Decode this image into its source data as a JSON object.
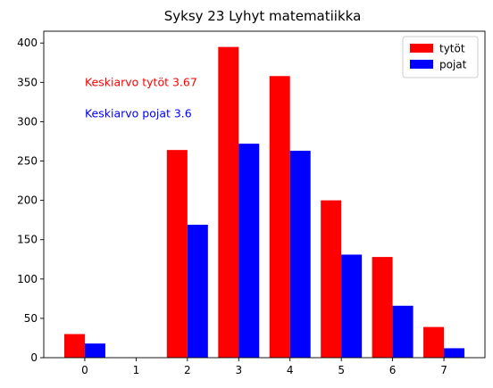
{
  "chart_data": {
    "type": "bar",
    "title": "Syksy 23 Lyhyt matematiikka",
    "xlabel": "",
    "ylabel": "",
    "categories": [
      0,
      1,
      2,
      3,
      4,
      5,
      6,
      7
    ],
    "series": [
      {
        "name": "tytöt",
        "color": "#ff0000",
        "values": [
          30,
          0,
          264,
          395,
          358,
          200,
          128,
          39
        ]
      },
      {
        "name": "pojat",
        "color": "#0000ff",
        "values": [
          18,
          0,
          169,
          272,
          263,
          131,
          66,
          12
        ]
      }
    ],
    "xticks": [
      "0",
      "1",
      "2",
      "3",
      "4",
      "5",
      "6",
      "7"
    ],
    "yticks": [
      0,
      50,
      100,
      150,
      200,
      250,
      300,
      350,
      400
    ],
    "xlim": [
      -0.8,
      7.8
    ],
    "ylim": [
      0,
      415
    ],
    "legend": "top-right",
    "grid": false,
    "annotations": [
      {
        "text": "Keskiarvo tytöt 3.67",
        "x": 0,
        "y": 350,
        "color": "#ff0000"
      },
      {
        "text": "Keskiarvo pojat 3.6",
        "x": 0,
        "y": 310,
        "color": "#0000ff"
      }
    ]
  }
}
